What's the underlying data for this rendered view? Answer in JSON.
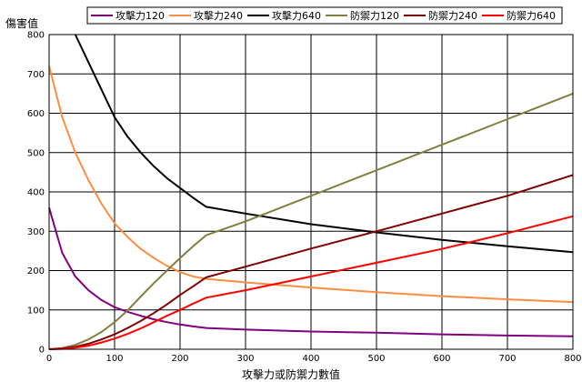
{
  "chart_data": {
    "type": "line",
    "title": "",
    "xlabel": "攻擊力或防禦力數值",
    "ylabel": "傷害值",
    "xlim": [
      0,
      800
    ],
    "ylim": [
      0,
      800
    ],
    "x_ticks": [
      0,
      100,
      200,
      300,
      400,
      500,
      600,
      700,
      800
    ],
    "y_ticks": [
      0,
      100,
      200,
      300,
      400,
      500,
      600,
      700,
      800
    ],
    "grid": true,
    "legend_position": "top",
    "series": [
      {
        "name": "攻擊力120",
        "color": "#800080",
        "points": [
          [
            0,
            360
          ],
          [
            20,
            245
          ],
          [
            40,
            185
          ],
          [
            60,
            150
          ],
          [
            80,
            125
          ],
          [
            100,
            107
          ],
          [
            120,
            95
          ],
          [
            140,
            85
          ],
          [
            160,
            76
          ],
          [
            180,
            69
          ],
          [
            200,
            63
          ],
          [
            220,
            58
          ],
          [
            240,
            54
          ],
          [
            300,
            50
          ],
          [
            400,
            45
          ],
          [
            500,
            42
          ],
          [
            600,
            38
          ],
          [
            700,
            35
          ],
          [
            800,
            33
          ]
        ]
      },
      {
        "name": "攻擊力240",
        "color": "#ff8c40",
        "points": [
          [
            0,
            720
          ],
          [
            20,
            590
          ],
          [
            40,
            500
          ],
          [
            60,
            430
          ],
          [
            80,
            370
          ],
          [
            100,
            320
          ],
          [
            120,
            285
          ],
          [
            140,
            255
          ],
          [
            160,
            232
          ],
          [
            180,
            212
          ],
          [
            200,
            196
          ],
          [
            220,
            185
          ],
          [
            240,
            179
          ],
          [
            300,
            170
          ],
          [
            400,
            157
          ],
          [
            500,
            145
          ],
          [
            600,
            135
          ],
          [
            700,
            127
          ],
          [
            800,
            120
          ]
        ]
      },
      {
        "name": "攻擊力640",
        "color": "#000000",
        "points": [
          [
            40,
            800
          ],
          [
            60,
            730
          ],
          [
            80,
            660
          ],
          [
            100,
            590
          ],
          [
            120,
            540
          ],
          [
            140,
            500
          ],
          [
            160,
            465
          ],
          [
            180,
            435
          ],
          [
            200,
            410
          ],
          [
            220,
            385
          ],
          [
            240,
            362
          ],
          [
            300,
            345
          ],
          [
            400,
            318
          ],
          [
            500,
            297
          ],
          [
            600,
            278
          ],
          [
            700,
            262
          ],
          [
            800,
            247
          ]
        ]
      },
      {
        "name": "防禦力120",
        "color": "#808040",
        "points": [
          [
            0,
            0
          ],
          [
            20,
            3
          ],
          [
            40,
            11
          ],
          [
            60,
            25
          ],
          [
            80,
            44
          ],
          [
            100,
            69
          ],
          [
            120,
            99
          ],
          [
            140,
            134
          ],
          [
            160,
            168
          ],
          [
            180,
            200
          ],
          [
            200,
            232
          ],
          [
            220,
            262
          ],
          [
            240,
            290
          ],
          [
            300,
            325
          ],
          [
            400,
            390
          ],
          [
            500,
            455
          ],
          [
            600,
            520
          ],
          [
            700,
            585
          ],
          [
            800,
            650
          ]
        ]
      },
      {
        "name": "防禦力240",
        "color": "#800000",
        "points": [
          [
            0,
            0
          ],
          [
            20,
            2
          ],
          [
            40,
            6
          ],
          [
            60,
            14
          ],
          [
            80,
            25
          ],
          [
            100,
            38
          ],
          [
            120,
            54
          ],
          [
            140,
            72
          ],
          [
            160,
            92
          ],
          [
            180,
            114
          ],
          [
            200,
            138
          ],
          [
            220,
            160
          ],
          [
            240,
            183
          ],
          [
            300,
            210
          ],
          [
            400,
            256
          ],
          [
            500,
            300
          ],
          [
            600,
            345
          ],
          [
            700,
            390
          ],
          [
            800,
            443
          ]
        ]
      },
      {
        "name": "防禦力640",
        "color": "#ff0000",
        "points": [
          [
            0,
            0
          ],
          [
            20,
            1
          ],
          [
            40,
            4
          ],
          [
            60,
            9
          ],
          [
            80,
            17
          ],
          [
            100,
            27
          ],
          [
            120,
            39
          ],
          [
            140,
            53
          ],
          [
            160,
            69
          ],
          [
            180,
            85
          ],
          [
            200,
            100
          ],
          [
            220,
            116
          ],
          [
            240,
            131
          ],
          [
            300,
            150
          ],
          [
            400,
            185
          ],
          [
            500,
            220
          ],
          [
            600,
            255
          ],
          [
            700,
            295
          ],
          [
            800,
            338
          ]
        ]
      }
    ]
  }
}
